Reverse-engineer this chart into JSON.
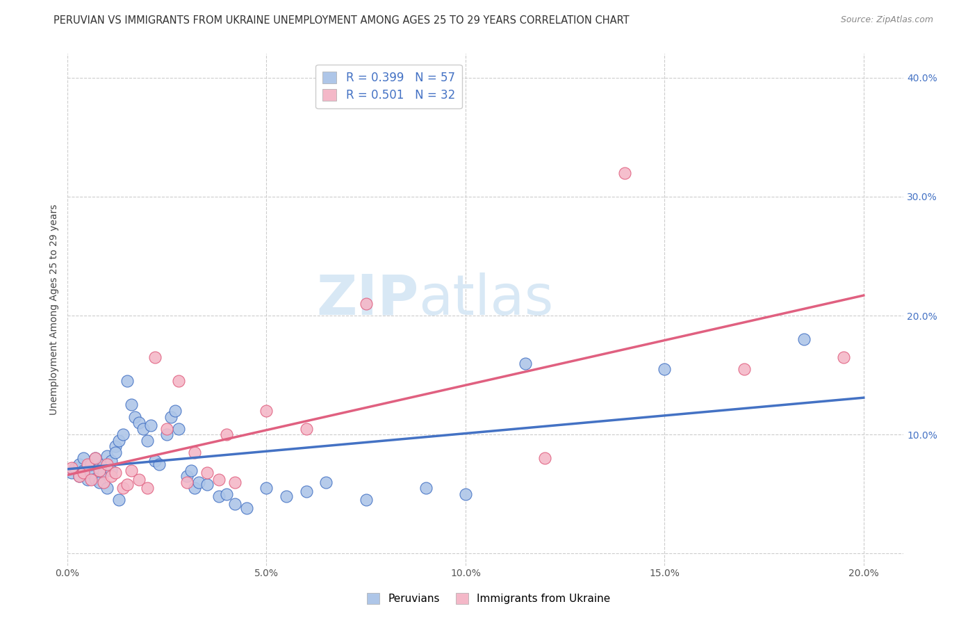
{
  "title": "PERUVIAN VS IMMIGRANTS FROM UKRAINE UNEMPLOYMENT AMONG AGES 25 TO 29 YEARS CORRELATION CHART",
  "source": "Source: ZipAtlas.com",
  "ylabel": "Unemployment Among Ages 25 to 29 years",
  "xlim": [
    0.0,
    0.21
  ],
  "ylim": [
    -0.01,
    0.42
  ],
  "xticks": [
    0.0,
    0.05,
    0.1,
    0.15,
    0.2
  ],
  "yticks": [
    0.0,
    0.1,
    0.2,
    0.3,
    0.4
  ],
  "xtick_labels": [
    "0.0%",
    "5.0%",
    "10.0%",
    "15.0%",
    "20.0%"
  ],
  "ytick_labels_right": [
    "",
    "10.0%",
    "20.0%",
    "30.0%",
    "40.0%"
  ],
  "watermark_zip": "ZIP",
  "watermark_atlas": "atlas",
  "peruvian_color": "#aec6e8",
  "peruvian_edge_color": "#4472c4",
  "ukraine_color": "#f4b8c8",
  "ukraine_edge_color": "#e06080",
  "line_peruvian_color": "#4472c4",
  "line_ukraine_color": "#e06080",
  "legend_r1": "R = 0.399",
  "legend_n1": "N = 57",
  "legend_r2": "R = 0.501",
  "legend_n2": "N = 32",
  "peruvian_scatter_x": [
    0.001,
    0.002,
    0.003,
    0.003,
    0.004,
    0.004,
    0.005,
    0.005,
    0.006,
    0.006,
    0.007,
    0.007,
    0.008,
    0.008,
    0.009,
    0.009,
    0.01,
    0.01,
    0.011,
    0.011,
    0.012,
    0.012,
    0.013,
    0.013,
    0.014,
    0.015,
    0.016,
    0.017,
    0.018,
    0.019,
    0.02,
    0.021,
    0.022,
    0.023,
    0.025,
    0.026,
    0.027,
    0.028,
    0.03,
    0.031,
    0.032,
    0.033,
    0.035,
    0.038,
    0.04,
    0.042,
    0.045,
    0.05,
    0.055,
    0.06,
    0.065,
    0.075,
    0.09,
    0.1,
    0.115,
    0.15,
    0.185
  ],
  "peruvian_scatter_y": [
    0.068,
    0.072,
    0.065,
    0.075,
    0.07,
    0.08,
    0.062,
    0.073,
    0.068,
    0.075,
    0.063,
    0.08,
    0.072,
    0.06,
    0.075,
    0.068,
    0.082,
    0.055,
    0.078,
    0.07,
    0.09,
    0.085,
    0.095,
    0.045,
    0.1,
    0.145,
    0.125,
    0.115,
    0.11,
    0.105,
    0.095,
    0.108,
    0.078,
    0.075,
    0.1,
    0.115,
    0.12,
    0.105,
    0.065,
    0.07,
    0.055,
    0.06,
    0.058,
    0.048,
    0.05,
    0.042,
    0.038,
    0.055,
    0.048,
    0.052,
    0.06,
    0.045,
    0.055,
    0.05,
    0.16,
    0.155,
    0.18
  ],
  "ukraine_scatter_x": [
    0.001,
    0.003,
    0.004,
    0.005,
    0.006,
    0.007,
    0.008,
    0.009,
    0.01,
    0.011,
    0.012,
    0.014,
    0.015,
    0.016,
    0.018,
    0.02,
    0.022,
    0.025,
    0.028,
    0.03,
    0.032,
    0.035,
    0.038,
    0.04,
    0.042,
    0.05,
    0.06,
    0.075,
    0.12,
    0.14,
    0.17,
    0.195
  ],
  "ukraine_scatter_y": [
    0.072,
    0.065,
    0.068,
    0.075,
    0.062,
    0.08,
    0.07,
    0.06,
    0.075,
    0.065,
    0.068,
    0.055,
    0.058,
    0.07,
    0.062,
    0.055,
    0.165,
    0.105,
    0.145,
    0.06,
    0.085,
    0.068,
    0.062,
    0.1,
    0.06,
    0.12,
    0.105,
    0.21,
    0.08,
    0.32,
    0.155,
    0.165
  ],
  "background_color": "#ffffff",
  "grid_color": "#cccccc",
  "title_fontsize": 10.5,
  "axis_label_fontsize": 10,
  "tick_fontsize": 10
}
